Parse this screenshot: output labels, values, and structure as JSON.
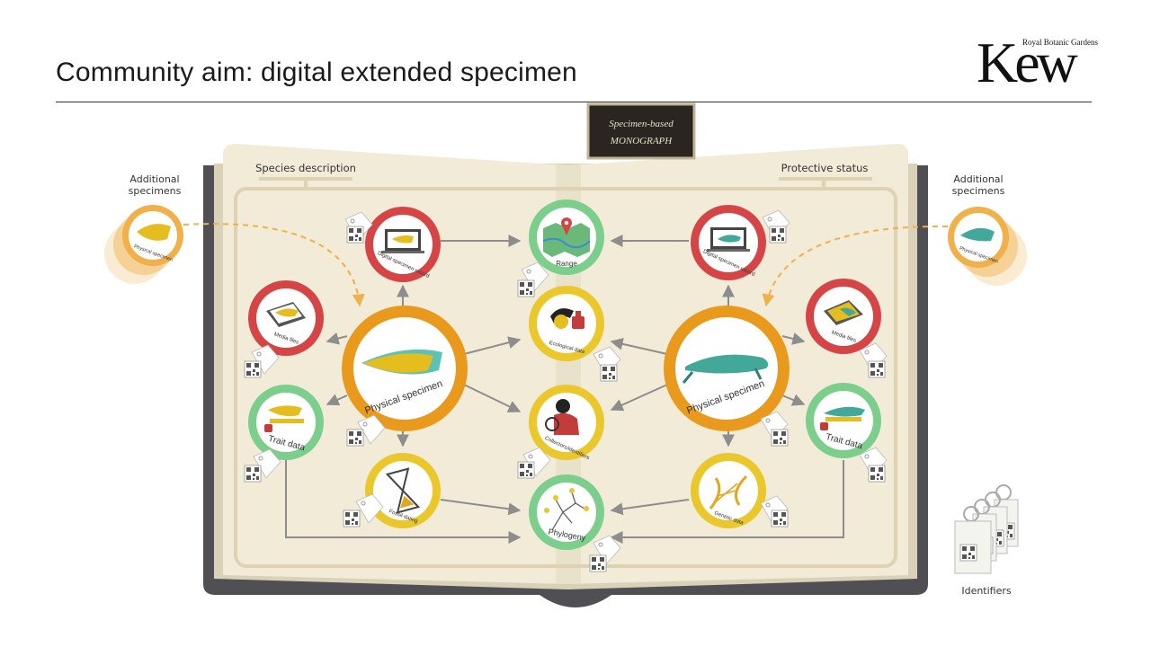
{
  "slide": {
    "title": "Community aim: digital extended specimen",
    "logo": {
      "main": "Kew",
      "sub": "Royal Botanic Gardens"
    }
  },
  "book": {
    "ribbon": {
      "line1": "Specimen-based",
      "line2": "MONOGRAPH"
    },
    "left_section": "Species description",
    "right_section": "Protective status"
  },
  "side_labels": {
    "additional_left": [
      "Additional",
      "specimens"
    ],
    "additional_right": [
      "Additional",
      "specimens"
    ],
    "identifiers": "Identifiers"
  },
  "nodes": {
    "physical_left": "Physical specimen",
    "physical_right": "Physical specimen",
    "digital_left": "Digital specimen record",
    "digital_right": "Digital specimen record",
    "media_left": "Media files",
    "media_right": "Media files",
    "trait_left": "Trait data",
    "trait_right": "Trait data",
    "fossil": "Fossil dating",
    "genetic": "Genetic data",
    "range": "Range",
    "ecological": "Ecological data",
    "collectors": "Collectors/identifiers",
    "phylogeny": "Phylogeny",
    "extra_left": "Physical specimen",
    "extra_right": "Physical specimen"
  },
  "colors": {
    "red": "#d64545",
    "green": "#7cce8c",
    "orange": "#e99a1c",
    "yellow": "#eac72a",
    "teal": "#41a89a",
    "book_page": "#f1ebd7",
    "book_cover": "#4f4f54"
  }
}
